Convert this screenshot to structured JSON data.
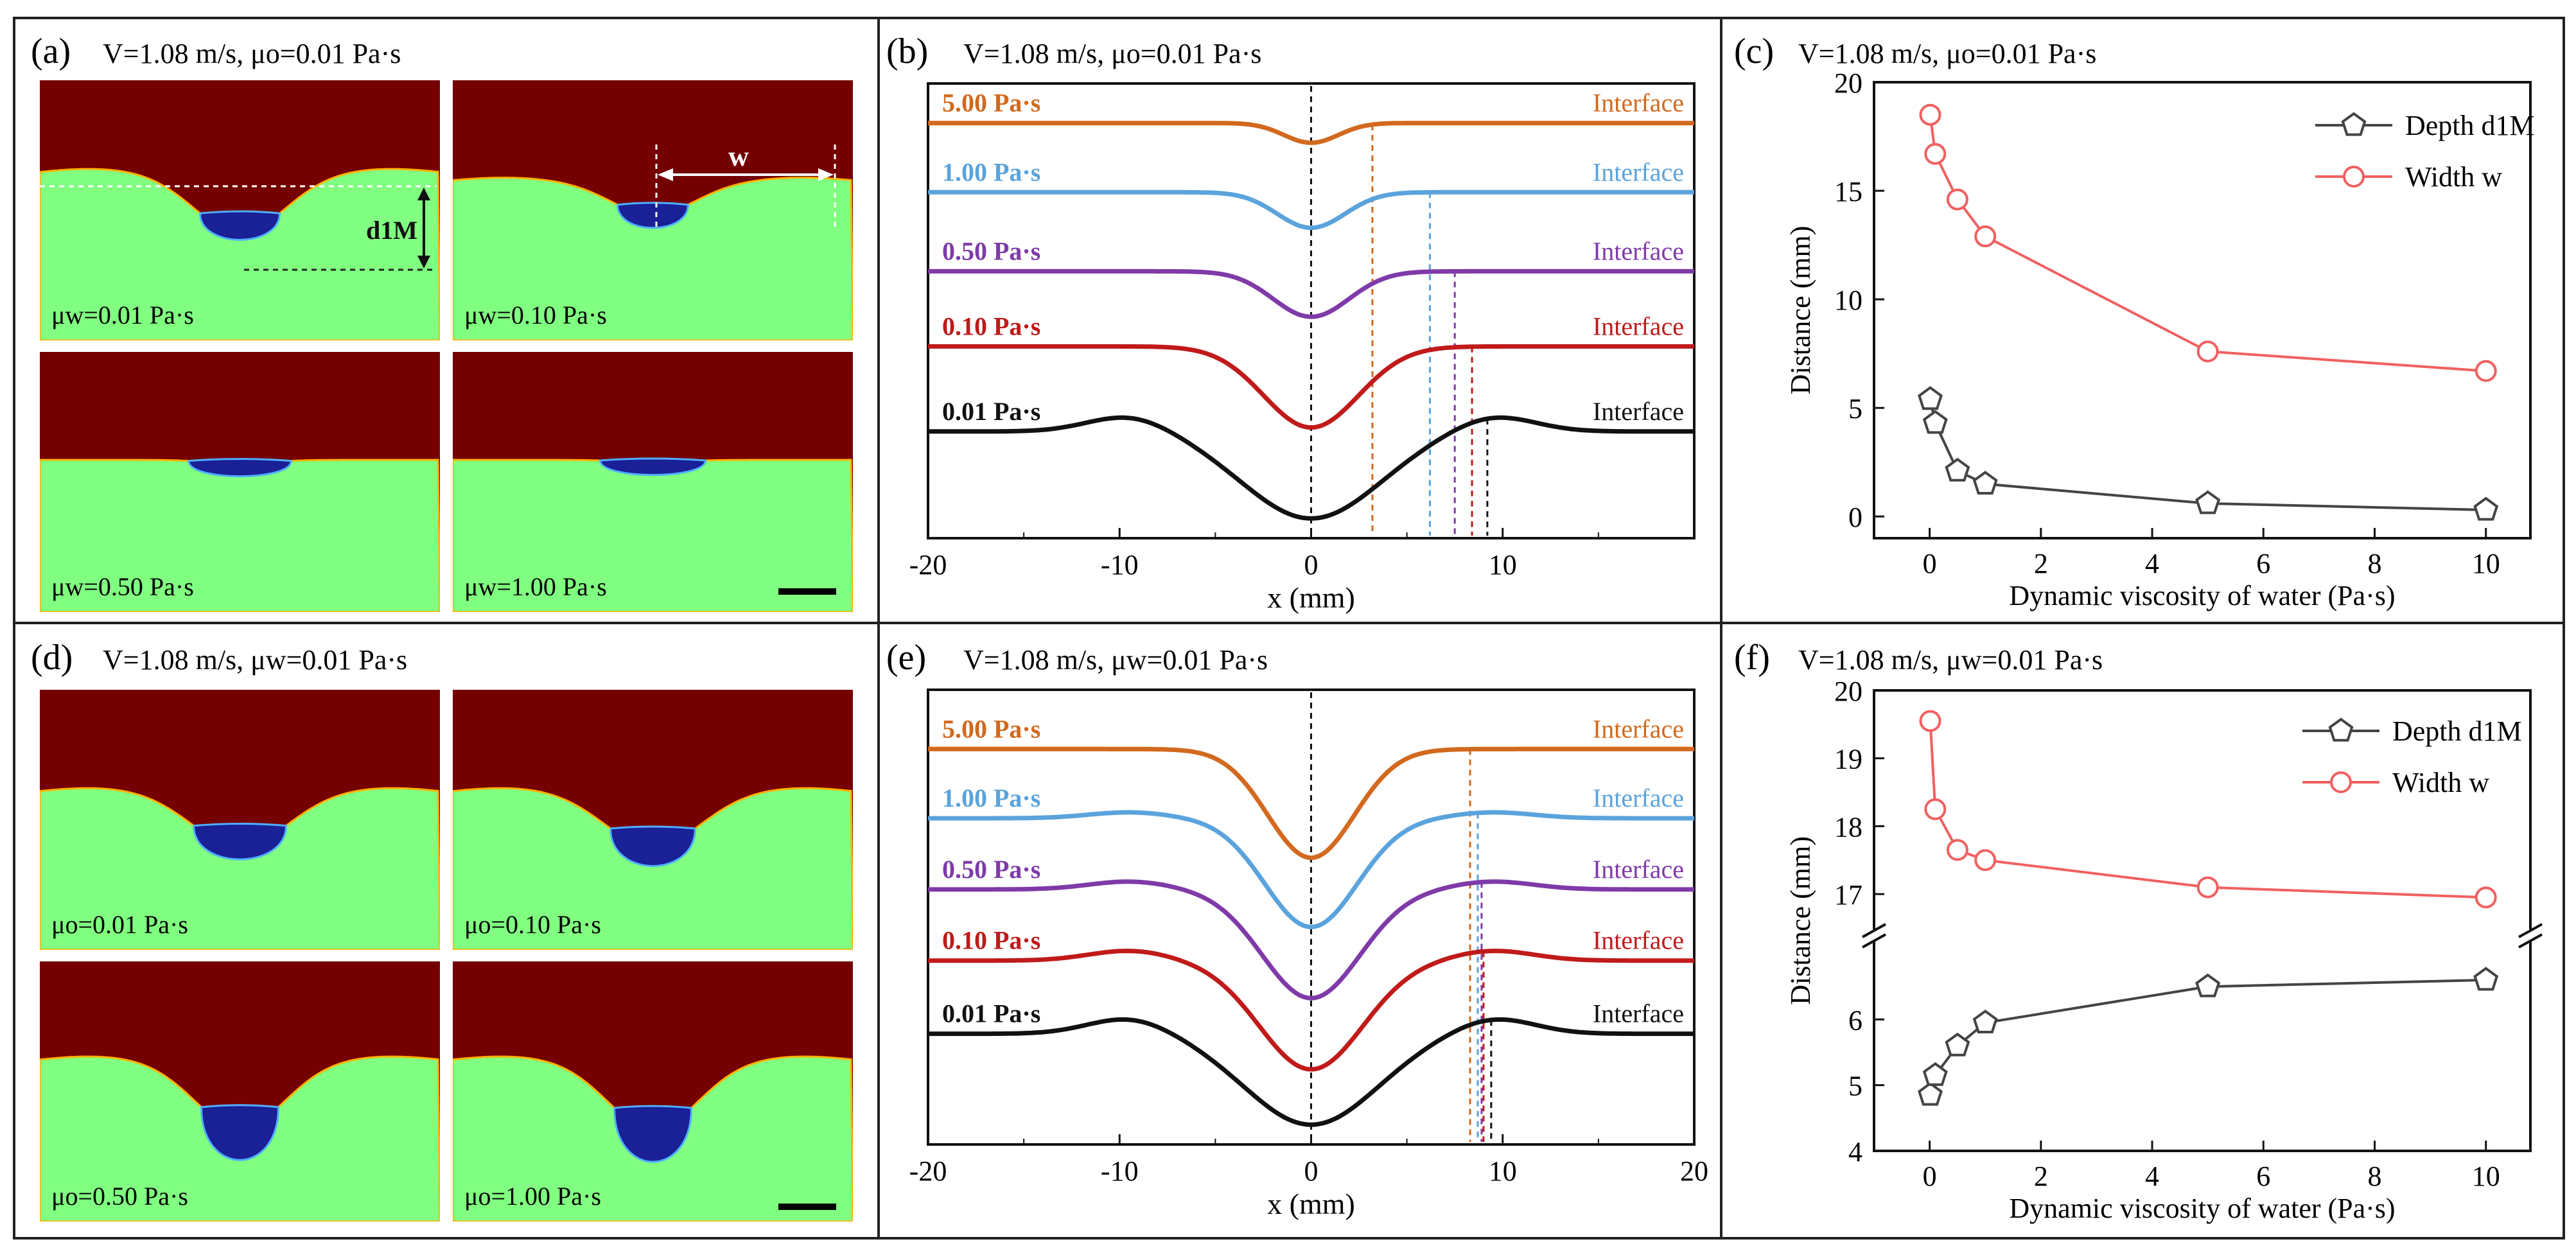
{
  "colors": {
    "oil": "#740000",
    "water": "#80ff80",
    "drop": "#1a2096",
    "dropEdge": "#4fb0ff",
    "orange": "#d2691e",
    "blue": "#5ba3dc",
    "purple": "#7f3aa8",
    "red": "#c01a1a",
    "black": "#111111",
    "gray": "#444444",
    "plotRed": "#f06060"
  },
  "panels": {
    "a": {
      "letter": "(a)",
      "header": "V=1.08 m/s, μo=0.01 Pa·s",
      "width_label": "w",
      "depth_label": "d1M",
      "images": [
        {
          "label": "μw=0.01 Pa·s"
        },
        {
          "label": "μw=0.10 Pa·s"
        },
        {
          "label": "μw=0.50 Pa·s"
        },
        {
          "label": "μw=1.00 Pa·s"
        }
      ]
    },
    "d": {
      "letter": "(d)",
      "header": "V=1.08 m/s, μw=0.01 Pa·s",
      "images": [
        {
          "label": "μo=0.01 Pa·s"
        },
        {
          "label": "μo=0.10 Pa·s"
        },
        {
          "label": "μo=0.50 Pa·s"
        },
        {
          "label": "μo=1.00 Pa·s"
        }
      ]
    },
    "b": {
      "letter": "(b)",
      "header": "V=1.08 m/s, μo=0.01 Pa·s"
    },
    "e": {
      "letter": "(e)",
      "header": "V=1.08 m/s, μw=0.01 Pa·s"
    },
    "c": {
      "letter": "(c)",
      "header": "V=1.08 m/s, μo=0.01 Pa·s"
    },
    "f": {
      "letter": "(f)",
      "header": "V=1.08 m/s, μw=0.01 Pa·s"
    }
  },
  "chart_data": [
    {
      "id": "b",
      "type": "line",
      "xlabel": "x (mm)",
      "xlim": [
        -20,
        20
      ],
      "xticks": [
        "-20",
        "-10",
        "0",
        "10"
      ],
      "interface_label": "Interface",
      "series": [
        {
          "name": "5.00 Pa·s",
          "offset": 20.0,
          "min_depth": 1.0,
          "rise_width": 2.0,
          "bump": 0.0,
          "marker_x": 3.2
        },
        {
          "name": "1.00 Pa·s",
          "offset": 16.5,
          "min_depth": 1.8,
          "rise_width": 2.5,
          "bump": 0.0,
          "marker_x": 6.2
        },
        {
          "name": "0.50 Pa·s",
          "offset": 12.5,
          "min_depth": 2.3,
          "rise_width": 2.8,
          "bump": 0.0,
          "marker_x": 7.5
        },
        {
          "name": "0.10 Pa·s",
          "offset": 8.7,
          "min_depth": 4.1,
          "rise_width": 3.5,
          "bump": 0.0,
          "marker_x": 8.4
        },
        {
          "name": "0.01 Pa·s",
          "offset": 4.4,
          "min_depth": 4.4,
          "rise_width": 5.0,
          "bump": 0.8,
          "marker_x": 9.2
        }
      ]
    },
    {
      "id": "e",
      "type": "line",
      "xlabel": "x (mm)",
      "xlim": [
        -20,
        20
      ],
      "xticks": [
        "-20",
        "-10",
        "0",
        "10",
        "20"
      ],
      "interface_label": "Interface",
      "series": [
        {
          "name": "5.00 Pa·s",
          "offset": 19.0,
          "min_depth": 5.5,
          "rise_width": 3.2,
          "bump": 0.0,
          "marker_x": 8.3
        },
        {
          "name": "1.00 Pa·s",
          "offset": 15.5,
          "min_depth": 5.5,
          "rise_width": 3.4,
          "bump": 0.3,
          "marker_x": 8.7
        },
        {
          "name": "0.50 Pa·s",
          "offset": 11.9,
          "min_depth": 5.5,
          "rise_width": 3.6,
          "bump": 0.4,
          "marker_x": 8.9
        },
        {
          "name": "0.10 Pa·s",
          "offset": 8.3,
          "min_depth": 5.5,
          "rise_width": 3.8,
          "bump": 0.5,
          "marker_x": 9.0
        },
        {
          "name": "0.01 Pa·s",
          "offset": 4.6,
          "min_depth": 4.6,
          "rise_width": 4.8,
          "bump": 0.8,
          "marker_x": 9.4
        }
      ]
    },
    {
      "id": "c",
      "type": "line",
      "xlabel": "Dynamic viscosity of water (Pa·s)",
      "ylabel": "Distance (mm)",
      "xlim": [
        -1,
        10.8
      ],
      "ylim": [
        -1,
        20
      ],
      "xticks": [
        0,
        2,
        4,
        6,
        8,
        10
      ],
      "yticks": [
        0,
        5,
        10,
        15,
        20
      ],
      "series": [
        {
          "name": "Depth d1M",
          "marker": "pentagon",
          "x": [
            0.01,
            0.1,
            0.5,
            1.0,
            5.0,
            10.0
          ],
          "y": [
            5.4,
            4.3,
            2.1,
            1.5,
            0.6,
            0.3
          ]
        },
        {
          "name": "Width w",
          "marker": "circle",
          "x": [
            0.01,
            0.1,
            0.5,
            1.0,
            5.0,
            10.0
          ],
          "y": [
            18.5,
            16.7,
            14.6,
            12.9,
            7.6,
            6.7
          ]
        }
      ]
    },
    {
      "id": "f",
      "type": "line",
      "xlabel": "Dynamic viscosity of water (Pa·s)",
      "ylabel": "Distance (mm)",
      "xlim": [
        -1,
        10.8
      ],
      "ylim_lower": [
        4,
        7
      ],
      "ylim_upper": [
        16.5,
        20
      ],
      "xticks": [
        0,
        2,
        4,
        6,
        8,
        10
      ],
      "yticks_lower": [
        4,
        5,
        6
      ],
      "yticks_upper": [
        17,
        18,
        19,
        20
      ],
      "series": [
        {
          "name": "Depth d1M",
          "marker": "pentagon",
          "x": [
            0.01,
            0.1,
            0.5,
            1.0,
            5.0,
            10.0
          ],
          "y": [
            4.85,
            5.15,
            5.6,
            5.95,
            6.5,
            6.6
          ]
        },
        {
          "name": "Width w",
          "marker": "circle",
          "x": [
            0.01,
            0.1,
            0.5,
            1.0,
            5.0,
            10.0
          ],
          "y": [
            19.55,
            18.25,
            17.65,
            17.5,
            17.1,
            16.95
          ]
        }
      ]
    }
  ]
}
